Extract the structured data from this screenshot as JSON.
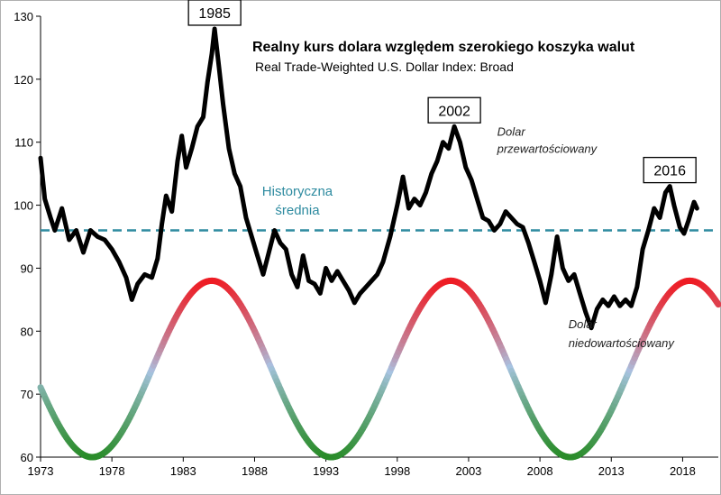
{
  "chart_data": {
    "type": "line",
    "title": "Realny kurs dolara względem szerokiego koszyka walut",
    "subtitle": "Real Trade-Weighted U.S. Dollar Index: Broad",
    "xlim": [
      1973,
      2020.5
    ],
    "ylim": [
      60,
      130
    ],
    "x_ticks": [
      1973,
      1978,
      1983,
      1988,
      1993,
      1998,
      2003,
      2008,
      2013,
      2018
    ],
    "x_tick_labels": [
      "1973",
      "1978",
      "1983",
      "1988",
      "1993",
      "1998",
      "2003",
      "2008",
      "2013",
      "2018"
    ],
    "y_ticks": [
      60,
      70,
      80,
      90,
      100,
      110,
      120,
      130
    ],
    "y_tick_labels": [
      "60",
      "70",
      "80",
      "90",
      "100",
      "110",
      "120",
      "130"
    ],
    "series": [
      {
        "name": "Real Trade-Weighted U.S. Dollar Index: Broad",
        "color": "#000000",
        "points": [
          [
            1973.0,
            107.5
          ],
          [
            1973.3,
            101
          ],
          [
            1973.7,
            98
          ],
          [
            1974.0,
            96
          ],
          [
            1974.5,
            99.5
          ],
          [
            1975.0,
            94.5
          ],
          [
            1975.5,
            96
          ],
          [
            1976.0,
            92.5
          ],
          [
            1976.5,
            96
          ],
          [
            1977.0,
            95
          ],
          [
            1977.5,
            94.5
          ],
          [
            1978.0,
            93
          ],
          [
            1978.5,
            91
          ],
          [
            1979.0,
            88.5
          ],
          [
            1979.4,
            85
          ],
          [
            1979.8,
            87.5
          ],
          [
            1980.3,
            89
          ],
          [
            1980.8,
            88.5
          ],
          [
            1981.2,
            91.5
          ],
          [
            1981.5,
            97
          ],
          [
            1981.8,
            101.5
          ],
          [
            1982.2,
            99
          ],
          [
            1982.6,
            107
          ],
          [
            1982.9,
            111
          ],
          [
            1983.2,
            106
          ],
          [
            1983.6,
            109
          ],
          [
            1984.0,
            112.5
          ],
          [
            1984.4,
            114
          ],
          [
            1984.7,
            119.5
          ],
          [
            1985.0,
            124
          ],
          [
            1985.2,
            128
          ],
          [
            1985.5,
            122
          ],
          [
            1985.8,
            116
          ],
          [
            1986.2,
            109
          ],
          [
            1986.6,
            105
          ],
          [
            1987.0,
            103
          ],
          [
            1987.4,
            98
          ],
          [
            1987.8,
            95
          ],
          [
            1988.2,
            92
          ],
          [
            1988.6,
            89
          ],
          [
            1989.0,
            92.5
          ],
          [
            1989.4,
            96
          ],
          [
            1989.8,
            94
          ],
          [
            1990.2,
            93
          ],
          [
            1990.6,
            89
          ],
          [
            1991.0,
            87
          ],
          [
            1991.4,
            92
          ],
          [
            1991.8,
            88
          ],
          [
            1992.2,
            87.5
          ],
          [
            1992.6,
            86
          ],
          [
            1993.0,
            90
          ],
          [
            1993.4,
            88
          ],
          [
            1993.8,
            89.5
          ],
          [
            1994.2,
            88
          ],
          [
            1994.6,
            86.5
          ],
          [
            1995.0,
            84.5
          ],
          [
            1995.4,
            86
          ],
          [
            1995.8,
            87
          ],
          [
            1996.2,
            88
          ],
          [
            1996.6,
            89
          ],
          [
            1997.0,
            91
          ],
          [
            1997.5,
            95
          ],
          [
            1998.0,
            100
          ],
          [
            1998.4,
            104.5
          ],
          [
            1998.8,
            99.5
          ],
          [
            1999.2,
            101
          ],
          [
            1999.6,
            100
          ],
          [
            2000.0,
            102
          ],
          [
            2000.4,
            105
          ],
          [
            2000.8,
            107
          ],
          [
            2001.2,
            110
          ],
          [
            2001.6,
            109
          ],
          [
            2002.0,
            112.5
          ],
          [
            2002.4,
            110
          ],
          [
            2002.8,
            106
          ],
          [
            2003.2,
            104
          ],
          [
            2003.6,
            101
          ],
          [
            2004.0,
            98
          ],
          [
            2004.4,
            97.5
          ],
          [
            2004.8,
            96
          ],
          [
            2005.2,
            97
          ],
          [
            2005.6,
            99
          ],
          [
            2006.0,
            98
          ],
          [
            2006.4,
            97
          ],
          [
            2006.8,
            96.5
          ],
          [
            2007.2,
            94
          ],
          [
            2007.6,
            91
          ],
          [
            2008.0,
            88
          ],
          [
            2008.4,
            84.5
          ],
          [
            2008.8,
            89
          ],
          [
            2009.2,
            95
          ],
          [
            2009.6,
            90
          ],
          [
            2010.0,
            88
          ],
          [
            2010.4,
            89
          ],
          [
            2010.8,
            86
          ],
          [
            2011.2,
            83
          ],
          [
            2011.6,
            80.5
          ],
          [
            2012.0,
            83.5
          ],
          [
            2012.4,
            85
          ],
          [
            2012.8,
            84
          ],
          [
            2013.2,
            85.5
          ],
          [
            2013.6,
            84
          ],
          [
            2014.0,
            85
          ],
          [
            2014.4,
            84
          ],
          [
            2014.8,
            87
          ],
          [
            2015.2,
            93
          ],
          [
            2015.6,
            96
          ],
          [
            2016.0,
            99.5
          ],
          [
            2016.4,
            98
          ],
          [
            2016.8,
            102
          ],
          [
            2017.1,
            103
          ],
          [
            2017.4,
            100
          ],
          [
            2017.8,
            96.5
          ],
          [
            2018.1,
            95.5
          ],
          [
            2018.4,
            97.5
          ],
          [
            2018.8,
            100.5
          ],
          [
            2019.0,
            99.5
          ]
        ]
      },
      {
        "name": "cycle",
        "type": "sine",
        "min": 60,
        "max": 88,
        "period_years": 16.75,
        "peak_years": [
          1985.0,
          2001.75,
          2018.5
        ],
        "colors": {
          "peak": "#ee1c24",
          "mid": "#a9c4e4",
          "trough": "#2a8c2a"
        }
      }
    ],
    "reference_line": {
      "y": 96,
      "color": "#2e8ba0",
      "style": "dashed"
    },
    "annotations": [
      {
        "text": "1985",
        "x": 1985.2,
        "y": 128,
        "boxed": true
      },
      {
        "text": "2002",
        "x": 2002.0,
        "y": 112.5,
        "boxed": true
      },
      {
        "text": "2016",
        "x": 2017.1,
        "y": 103,
        "boxed": true
      },
      {
        "text": "Historyczna",
        "x": 1991.0,
        "y": 101.5,
        "role": "average-label"
      },
      {
        "text": "średnia",
        "x": 1991.0,
        "y": 98.5,
        "role": "average-label"
      },
      {
        "text": "Dolar",
        "x": 2005.0,
        "y": 111.0,
        "role": "note"
      },
      {
        "text": "przewartościowany",
        "x": 2005.0,
        "y": 108.3,
        "role": "note"
      },
      {
        "text": "Dolar",
        "x": 2010.0,
        "y": 80.5,
        "role": "note"
      },
      {
        "text": "niedowartościowany",
        "x": 2010.0,
        "y": 77.5,
        "role": "note"
      }
    ]
  }
}
